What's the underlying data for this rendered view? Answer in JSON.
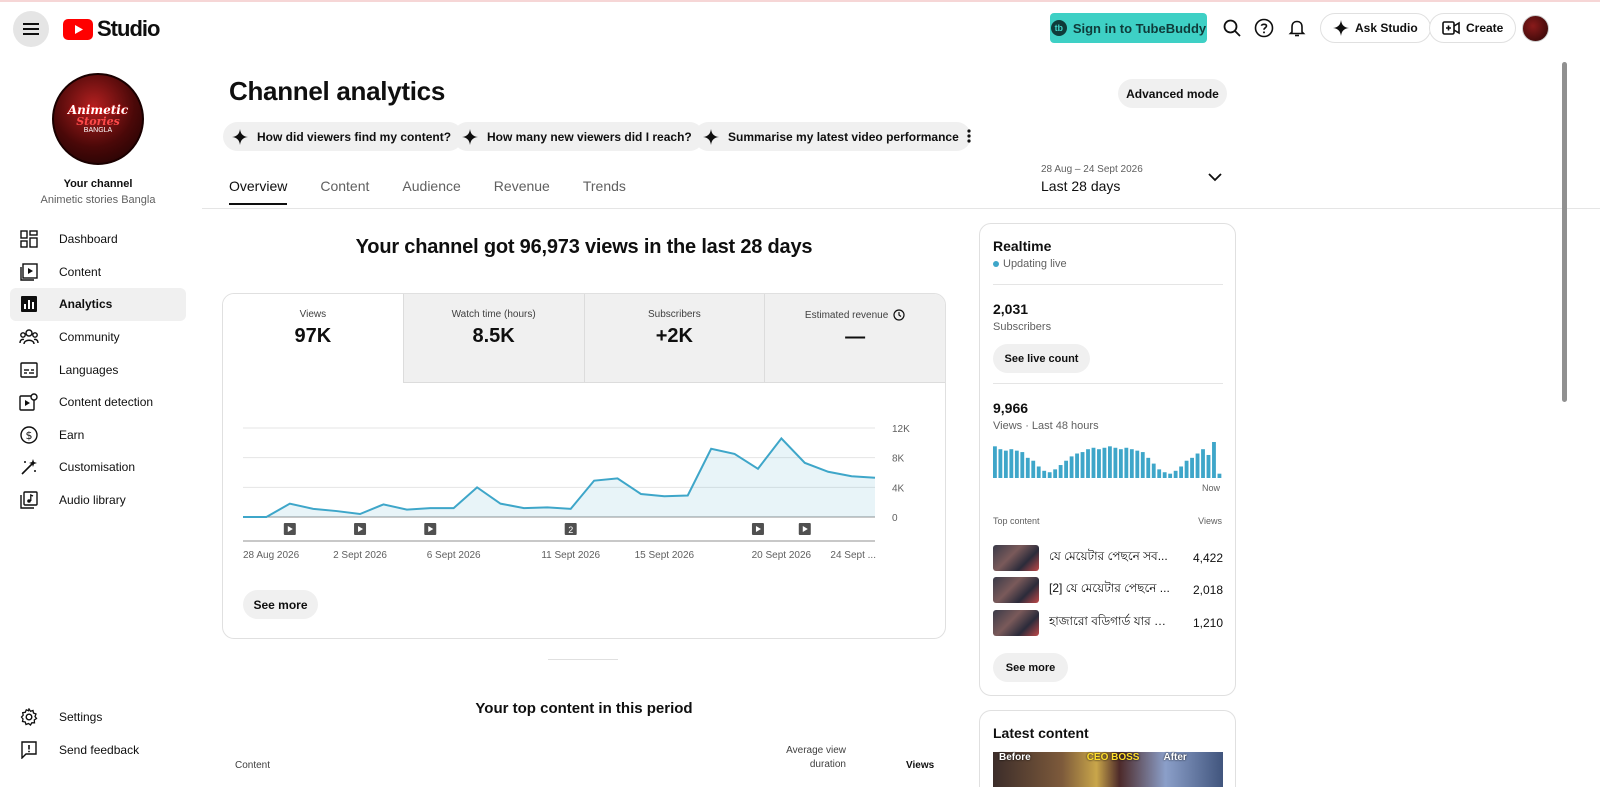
{
  "header": {
    "logo_text": "Studio",
    "tubebuddy_label": "Sign in to TubeBuddy",
    "tubebuddy_icon": "tb",
    "ask_studio_label": "Ask Studio",
    "create_label": "Create"
  },
  "sidebar": {
    "avatar_text_1": "Animetic",
    "avatar_text_2": "Stories",
    "avatar_text_3": "BANGLA",
    "your_channel_label": "Your channel",
    "channel_name": "Animetic stories Bangla",
    "items": [
      {
        "label": "Dashboard",
        "icon": "dashboard-icon"
      },
      {
        "label": "Content",
        "icon": "content-icon"
      },
      {
        "label": "Analytics",
        "icon": "analytics-icon",
        "active": true
      },
      {
        "label": "Community",
        "icon": "community-icon"
      },
      {
        "label": "Languages",
        "icon": "languages-icon"
      },
      {
        "label": "Content detection",
        "icon": "content-detection-icon"
      },
      {
        "label": "Earn",
        "icon": "earn-icon"
      },
      {
        "label": "Customisation",
        "icon": "customisation-icon"
      },
      {
        "label": "Audio library",
        "icon": "audio-library-icon"
      }
    ],
    "bottom_items": [
      {
        "label": "Settings",
        "icon": "gear-icon"
      },
      {
        "label": "Send feedback",
        "icon": "feedback-icon"
      }
    ]
  },
  "main": {
    "title": "Channel analytics",
    "advanced_mode_label": "Advanced mode",
    "chips": [
      "How did viewers find my content?",
      "How many new viewers did I reach?",
      "Summarise my latest video performance"
    ],
    "tabs": [
      "Overview",
      "Content",
      "Audience",
      "Revenue",
      "Trends"
    ],
    "active_tab": "Overview",
    "date_range_sub": "28 Aug – 24 Sept 2026",
    "date_range_main": "Last 28 days",
    "headline": "Your channel got 96,973 views in the last 28 days",
    "metrics": [
      {
        "label": "Views",
        "value": "97K"
      },
      {
        "label": "Watch time (hours)",
        "value": "8.5K"
      },
      {
        "label": "Subscribers",
        "value": "+2K"
      },
      {
        "label": "Estimated revenue",
        "value": "—"
      }
    ],
    "see_more_label": "See more",
    "top_content_title": "Your top content in this period",
    "top_content_columns": {
      "content": "Content",
      "avg_view_duration_line1": "Average view",
      "avg_view_duration_line2": "duration",
      "views": "Views"
    }
  },
  "chart_data": {
    "type": "area",
    "title": "",
    "xlabel": "",
    "ylabel": "",
    "ylim": [
      0,
      12000
    ],
    "y_ticks": [
      "0",
      "4K",
      "8K",
      "12K"
    ],
    "x_tick_labels": [
      "28 Aug 2026",
      "2 Sept 2026",
      "6 Sept 2026",
      "11 Sept 2026",
      "15 Sept 2026",
      "20 Sept 2026",
      "24 Sept ..."
    ],
    "x": [
      "28 Aug 2026",
      "29 Aug 2026",
      "30 Aug 2026",
      "31 Aug 2026",
      "1 Sept 2026",
      "2 Sept 2026",
      "3 Sept 2026",
      "4 Sept 2026",
      "5 Sept 2026",
      "6 Sept 2026",
      "7 Sept 2026",
      "8 Sept 2026",
      "9 Sept 2026",
      "10 Sept 2026",
      "11 Sept 2026",
      "12 Sept 2026",
      "13 Sept 2026",
      "14 Sept 2026",
      "15 Sept 2026",
      "16 Sept 2026",
      "17 Sept 2026",
      "18 Sept 2026",
      "19 Sept 2026",
      "20 Sept 2026",
      "21 Sept 2026",
      "22 Sept 2026",
      "23 Sept 2026",
      "24 Sept 2026"
    ],
    "series": [
      {
        "values": [
          0,
          0,
          1800,
          1100,
          800,
          400,
          1700,
          1000,
          1200,
          1200,
          4000,
          1800,
          1200,
          1300,
          1100,
          4900,
          5200,
          3100,
          2800,
          2900,
          9200,
          8500,
          6500,
          10600,
          7300,
          6100,
          5500,
          5300
        ]
      }
    ],
    "video_markers": [
      {
        "date": "30 Aug 2026",
        "count": 1
      },
      {
        "date": "2 Sept 2026",
        "count": 1
      },
      {
        "date": "5 Sept 2026",
        "count": 1
      },
      {
        "date": "11 Sept 2026",
        "count": 2
      },
      {
        "date": "19 Sept 2026",
        "count": 1
      },
      {
        "date": "21 Sept 2026",
        "count": 1
      }
    ],
    "color": "#3ea6c9",
    "grid": true
  },
  "realtime": {
    "title": "Realtime",
    "status": "Updating live",
    "subscribers_value": "2,031",
    "subscribers_label": "Subscribers",
    "see_live_count_label": "See live count",
    "views_value": "9,966",
    "views_label": "Views · Last 48 hours",
    "now_label": "Now",
    "hourly_views": [
      22,
      20,
      19,
      20,
      19,
      18,
      14,
      12,
      8,
      5,
      4,
      6,
      9,
      12,
      15,
      17,
      18,
      20,
      21,
      20,
      21,
      22,
      21,
      20,
      21,
      20,
      19,
      18,
      14,
      10,
      6,
      4,
      3,
      5,
      8,
      12,
      14,
      17,
      20,
      16,
      25,
      3
    ],
    "top_content_label": "Top content",
    "views_col_label": "Views",
    "top_content": [
      {
        "title": "যে মেয়েটার পেছনে সব...",
        "views": "4,422"
      },
      {
        "title": "[2] যে মেয়েটার পেছনে ...",
        "views": "2,018"
      },
      {
        "title": "হাজারো বডিগার্ড যার সা...",
        "views": "1,210"
      }
    ],
    "see_more_label": "See more"
  },
  "latest_content": {
    "title": "Latest content",
    "thumb_text_left": "Before",
    "thumb_text_mid": "CEO BOSS",
    "thumb_text_right": "After"
  }
}
